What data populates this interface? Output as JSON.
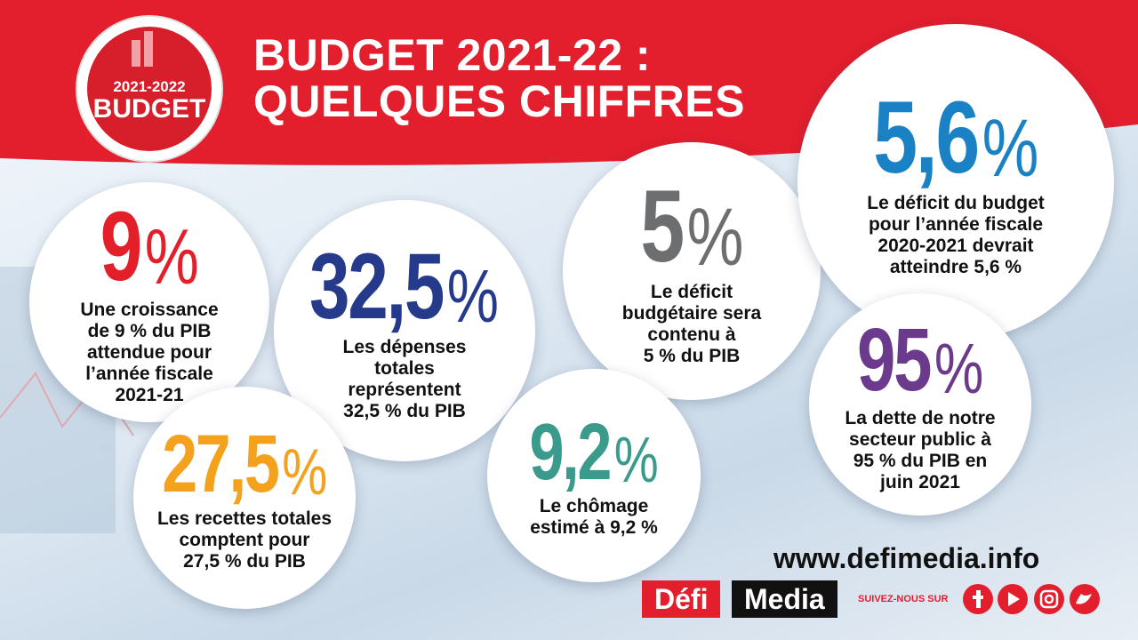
{
  "header": {
    "title_lines": [
      "BUDGET 2021-22 :",
      "QUELQUES CHIFFRES"
    ]
  },
  "badge": {
    "year": "2021-2022",
    "label": "BUDGET"
  },
  "figures": [
    {
      "number": "9",
      "unit": "%",
      "color": "#e3202a",
      "caption": [
        "Une croissance",
        "de 9 % du PIB",
        "attendue pour",
        "l’année fiscale",
        "2021-21"
      ]
    },
    {
      "number": "32,5",
      "unit": "%",
      "color": "#263a8c",
      "caption": [
        "Les dépenses",
        "totales",
        "représentent",
        "32,5 % du PIB"
      ]
    },
    {
      "number": "27,5",
      "unit": "%",
      "color": "#f4a11d",
      "caption": [
        "Les recettes totales",
        "comptent pour",
        "27,5 % du PIB"
      ]
    },
    {
      "number": "5",
      "unit": "%",
      "color": "#6d6e70",
      "caption": [
        "Le déficit",
        "budgétaire sera",
        "contenu à",
        "5 % du PIB"
      ]
    },
    {
      "number": "9,2",
      "unit": "%",
      "color": "#3a9a8b",
      "caption": [
        "Le chômage",
        "estimé à 9,2 %"
      ]
    },
    {
      "number": "5,6",
      "unit": "%",
      "color": "#1a82c4",
      "caption": [
        "Le déficit du budget",
        "pour l’année fiscale",
        "2020-2021 devrait",
        "atteindre 5,6 %"
      ]
    },
    {
      "number": "95",
      "unit": "%",
      "color": "#6b3a8c",
      "caption": [
        "La dette de notre",
        "secteur public à",
        "95 % du PIB en",
        "juin 2021"
      ]
    }
  ],
  "footer": {
    "website": "www.defimedia.info",
    "brand_left": "Défi",
    "brand_right": "Media",
    "follow": "SUIVEZ-NOUS SUR"
  }
}
